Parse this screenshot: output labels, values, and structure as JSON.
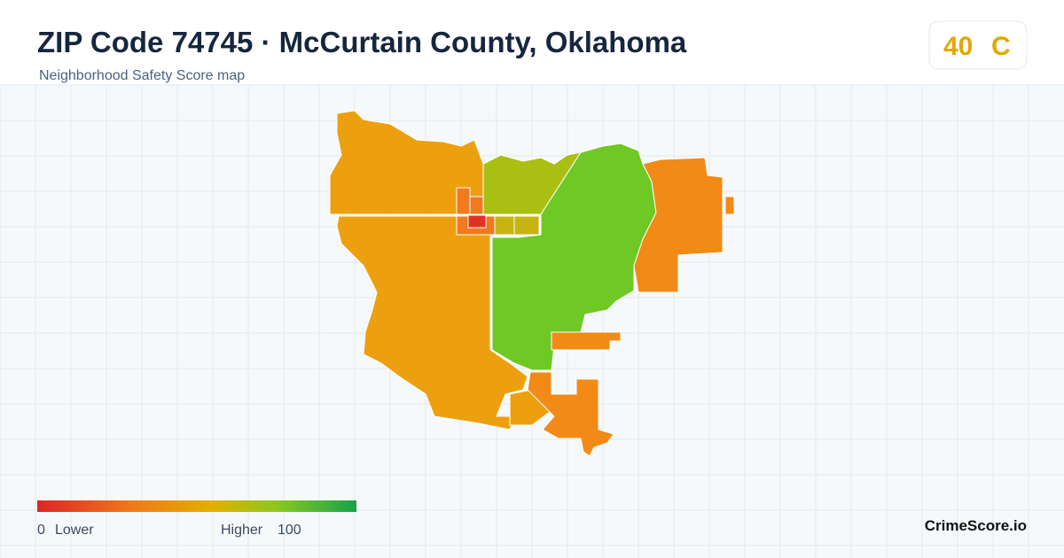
{
  "header": {
    "title": "ZIP Code 74745 · McCurtain County, Oklahoma",
    "subtitle": "Neighborhood Safety Score map"
  },
  "score": {
    "value": "40",
    "grade": "C"
  },
  "legend": {
    "min": "0",
    "min_label": "Lower",
    "max_label": "Higher",
    "max": "100"
  },
  "brand": "CrimeScore.io"
}
